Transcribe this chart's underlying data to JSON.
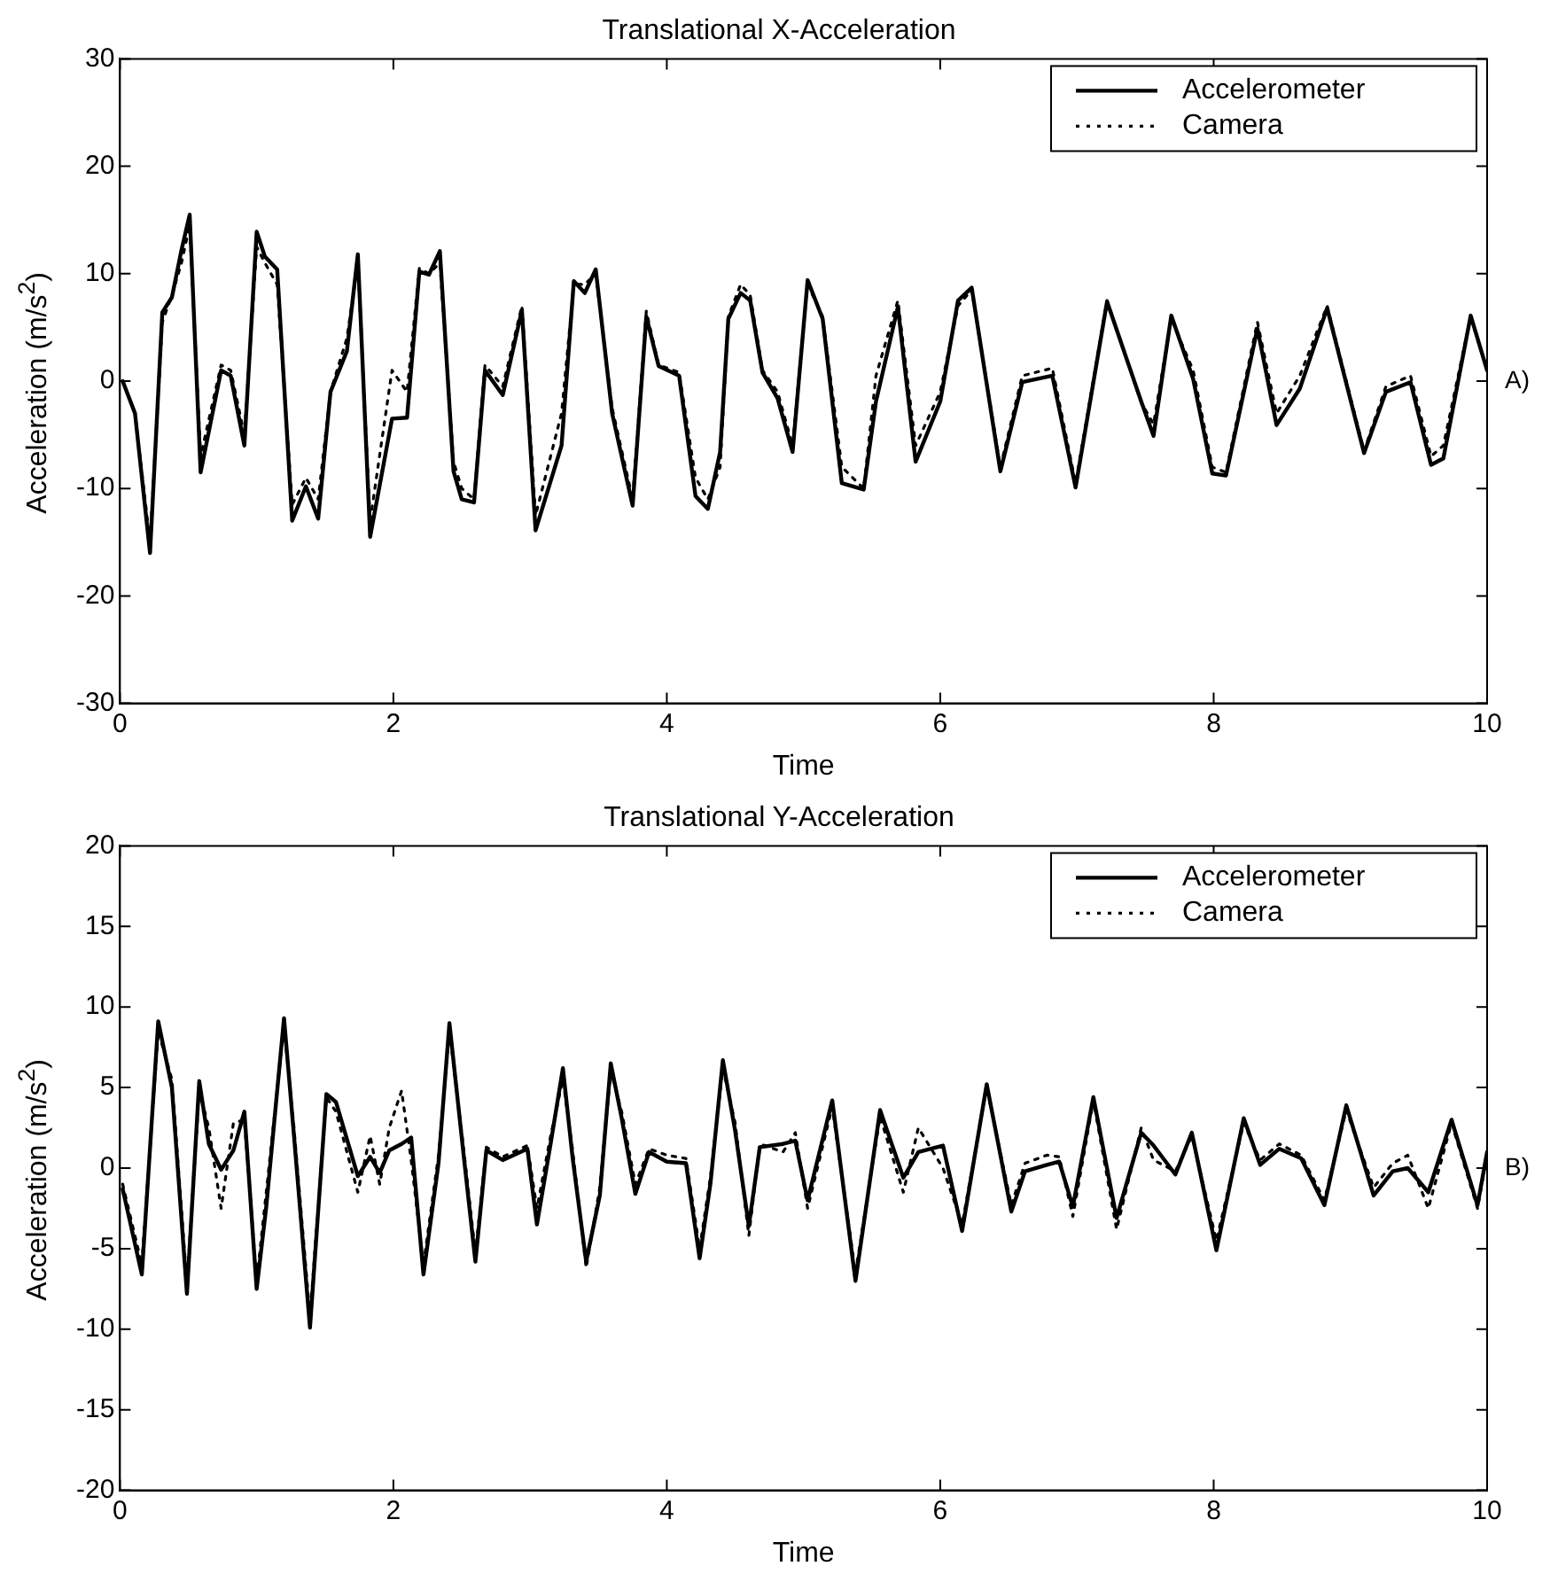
{
  "chart_data": [
    {
      "type": "line",
      "title": "Translational X-Acceleration",
      "xlabel": "Time",
      "ylabel": "Acceleration (m/s$^{2}$)",
      "annotations": [
        "A)"
      ],
      "xlim": [
        0,
        10
      ],
      "xticks": [
        0,
        2,
        4,
        6,
        8,
        10
      ],
      "ylim": [
        -30,
        30
      ],
      "yticks": [
        -30,
        -20,
        -10,
        0,
        10,
        20,
        30
      ],
      "grid": false,
      "legend": "top right",
      "marker": "none",
      "series": [
        {
          "name": "Accelerometer",
          "color": "#000000",
          "line_style": "solid",
          "x": [
            0.02,
            0.11,
            0.22,
            0.31,
            0.38,
            0.45,
            0.51,
            0.59,
            0.74,
            0.81,
            0.91,
            1.0,
            1.06,
            1.15,
            1.26,
            1.36,
            1.45,
            1.54,
            1.66,
            1.74,
            1.83,
            1.99,
            2.1,
            2.19,
            2.26,
            2.34,
            2.44,
            2.5,
            2.59,
            2.67,
            2.8,
            2.94,
            3.04,
            3.23,
            3.32,
            3.4,
            3.48,
            3.6,
            3.75,
            3.85,
            3.94,
            4.09,
            4.21,
            4.3,
            4.39,
            4.45,
            4.54,
            4.61,
            4.7,
            4.81,
            4.92,
            5.03,
            5.14,
            5.28,
            5.44,
            5.53,
            5.69,
            5.82,
            6.0,
            6.13,
            6.23,
            6.44,
            6.6,
            6.82,
            6.99,
            7.22,
            7.47,
            7.56,
            7.69,
            7.85,
            7.99,
            8.09,
            8.32,
            8.46,
            8.63,
            8.83,
            9.1,
            9.26,
            9.44,
            9.59,
            9.68,
            9.88,
            10
          ],
          "values": [
            0,
            -3,
            -16,
            6.4,
            7.8,
            12.2,
            15.5,
            -8.5,
            1,
            0.5,
            -6,
            13.9,
            11.6,
            10.4,
            -13,
            -9.8,
            -12.8,
            -1,
            2.8,
            11.8,
            -14.5,
            -3.5,
            -3.4,
            10.2,
            9.9,
            12.1,
            -8.4,
            -11,
            -11.3,
            1,
            -1.3,
            6.6,
            -13.9,
            -6,
            9.3,
            8.2,
            10.4,
            -3,
            -11.6,
            6,
            1.4,
            0.5,
            -10.7,
            -11.9,
            -6.6,
            5.8,
            8.2,
            7.5,
            0.8,
            -1.6,
            -6.6,
            9.4,
            5.8,
            -9.5,
            -10.1,
            -1.9,
            6.9,
            -7.5,
            -1.9,
            7.5,
            8.7,
            -8.4,
            -0.1,
            0.5,
            -9.9,
            7.4,
            -1.9,
            -5.1,
            6.1,
            0.2,
            -8.6,
            -8.8,
            4.9,
            -4.1,
            -0.7,
            6.8,
            -6.7,
            -1,
            -0.1,
            -7.8,
            -7.2,
            6.1,
            1
          ]
        },
        {
          "name": "Camera",
          "color": "#000000",
          "line_style": "dotted",
          "x": [
            0.02,
            0.11,
            0.22,
            0.31,
            0.38,
            0.45,
            0.51,
            0.59,
            0.74,
            0.81,
            0.91,
            1.0,
            1.06,
            1.15,
            1.26,
            1.36,
            1.45,
            1.54,
            1.66,
            1.74,
            1.83,
            1.99,
            2.1,
            2.19,
            2.26,
            2.34,
            2.44,
            2.5,
            2.59,
            2.67,
            2.8,
            2.94,
            3.04,
            3.23,
            3.32,
            3.4,
            3.48,
            3.6,
            3.75,
            3.85,
            3.94,
            4.09,
            4.21,
            4.3,
            4.39,
            4.45,
            4.54,
            4.61,
            4.7,
            4.81,
            4.92,
            5.03,
            5.14,
            5.28,
            5.44,
            5.53,
            5.69,
            5.82,
            6.0,
            6.13,
            6.23,
            6.44,
            6.6,
            6.82,
            6.99,
            7.22,
            7.47,
            7.56,
            7.69,
            7.85,
            7.99,
            8.09,
            8.32,
            8.46,
            8.63,
            8.83,
            9.1,
            9.26,
            9.44,
            9.59,
            9.68,
            9.88,
            10
          ],
          "values": [
            0,
            -3,
            -15,
            5.5,
            8,
            11,
            14.5,
            -7,
            1.5,
            1,
            -5,
            12.5,
            11,
            9,
            -11.5,
            -9,
            -11,
            -1,
            4,
            11,
            -13,
            1,
            -1,
            10.5,
            10,
            11,
            -7.5,
            -10,
            -11,
            1.5,
            -0.5,
            7,
            -12.5,
            -3,
            9,
            9,
            10,
            -2.5,
            -11,
            6.5,
            1.5,
            0.8,
            -9,
            -11,
            -8,
            6,
            9,
            8,
            1,
            -1,
            -6,
            9,
            6,
            -8,
            -10,
            0.5,
            7.5,
            -6,
            -1,
            7,
            8.5,
            -8,
            0.5,
            1.2,
            -9.5,
            7.5,
            -2,
            -4,
            5.8,
            1,
            -8,
            -8.5,
            5.5,
            -3,
            0.5,
            7,
            -6.5,
            -0.5,
            0.5,
            -7,
            -6,
            6,
            1
          ]
        }
      ]
    },
    {
      "type": "line",
      "title": "Translational Y-Acceleration",
      "xlabel": "Time",
      "ylabel": "Acceleration (m/s$^{2}$)",
      "annotations": [
        "B)"
      ],
      "xlim": [
        0,
        10
      ],
      "xticks": [
        0,
        2,
        4,
        6,
        8,
        10
      ],
      "ylim": [
        -20,
        20
      ],
      "yticks": [
        -20,
        -15,
        -10,
        -5,
        0,
        5,
        10,
        15,
        20
      ],
      "grid": false,
      "legend": "top right",
      "marker": "none",
      "series": [
        {
          "name": "Accelerometer",
          "color": "#000000",
          "line_style": "solid",
          "x": [
            0.02,
            0.16,
            0.28,
            0.38,
            0.49,
            0.58,
            0.65,
            0.74,
            0.83,
            0.91,
            1.0,
            1.07,
            1.2,
            1.27,
            1.39,
            1.51,
            1.58,
            1.74,
            1.83,
            1.9,
            1.97,
            2.06,
            2.13,
            2.22,
            2.33,
            2.41,
            2.51,
            2.6,
            2.68,
            2.8,
            2.98,
            3.05,
            3.15,
            3.24,
            3.31,
            3.41,
            3.51,
            3.59,
            3.67,
            3.77,
            3.87,
            4.0,
            4.14,
            4.24,
            4.32,
            4.41,
            4.5,
            4.6,
            4.68,
            4.85,
            4.94,
            5.03,
            5.21,
            5.38,
            5.56,
            5.73,
            5.84,
            6.02,
            6.16,
            6.34,
            6.52,
            6.62,
            6.78,
            6.87,
            6.97,
            7.12,
            7.29,
            7.47,
            7.56,
            7.72,
            7.84,
            8.02,
            8.22,
            8.34,
            8.48,
            8.64,
            8.81,
            8.97,
            9.17,
            9.31,
            9.42,
            9.57,
            9.74,
            9.93,
            10
          ],
          "values": [
            -1.3,
            -6.6,
            9.1,
            5,
            -7.8,
            5.4,
            1.5,
            -0.1,
            1.1,
            3.5,
            -7.5,
            -2.4,
            9.3,
            2.3,
            -9.9,
            4.6,
            4.1,
            -0.5,
            0.7,
            -0.3,
            1.1,
            1.5,
            1.9,
            -6.6,
            0.3,
            9,
            1.1,
            -5.8,
            1.1,
            0.5,
            1.2,
            -3.5,
            1.5,
            6.2,
            0.7,
            -5.8,
            -1.7,
            6.5,
            3.1,
            -1.6,
            1,
            0.4,
            0.3,
            -5.6,
            -0.9,
            6.7,
            2.3,
            -3.6,
            1.3,
            1.5,
            1.7,
            -2,
            4.2,
            -7,
            3.6,
            -0.6,
            1,
            1.4,
            -3.9,
            5.2,
            -2.7,
            -0.2,
            0.2,
            0.4,
            -2.4,
            4.4,
            -3.1,
            2.2,
            1.4,
            -0.4,
            2.2,
            -5.1,
            3.1,
            0.2,
            1.2,
            0.6,
            -2.3,
            3.9,
            -1.7,
            -0.2,
            0,
            -1.5,
            3,
            -2.3,
            1
          ]
        },
        {
          "name": "Camera",
          "color": "#000000",
          "line_style": "dotted",
          "x": [
            0.02,
            0.16,
            0.28,
            0.38,
            0.49,
            0.58,
            0.65,
            0.74,
            0.83,
            0.91,
            1.0,
            1.07,
            1.2,
            1.27,
            1.39,
            1.51,
            1.58,
            1.74,
            1.83,
            1.9,
            1.97,
            2.06,
            2.13,
            2.22,
            2.33,
            2.41,
            2.51,
            2.6,
            2.68,
            2.8,
            2.98,
            3.05,
            3.15,
            3.24,
            3.31,
            3.41,
            3.51,
            3.59,
            3.67,
            3.77,
            3.87,
            4.0,
            4.14,
            4.24,
            4.32,
            4.41,
            4.5,
            4.6,
            4.68,
            4.85,
            4.94,
            5.03,
            5.21,
            5.38,
            5.56,
            5.73,
            5.84,
            6.02,
            6.16,
            6.34,
            6.52,
            6.62,
            6.78,
            6.87,
            6.97,
            7.12,
            7.29,
            7.47,
            7.56,
            7.72,
            7.84,
            8.02,
            8.22,
            8.34,
            8.48,
            8.64,
            8.81,
            8.97,
            9.17,
            9.31,
            9.42,
            9.57,
            9.74,
            9.93,
            10
          ],
          "values": [
            -1,
            -6,
            8.5,
            5.5,
            -7.2,
            4.8,
            2.5,
            -2.5,
            2.8,
            3,
            -7,
            -1.5,
            8.8,
            2.8,
            -9.2,
            4.4,
            3.5,
            -1.5,
            2,
            -1,
            2.5,
            4.8,
            0.5,
            -6,
            0.8,
            8.5,
            1.5,
            -5.3,
            1.3,
            0.7,
            1.4,
            -2.5,
            2,
            5.5,
            1.2,
            -6.2,
            -1.2,
            6,
            3.5,
            -1,
            1.2,
            0.8,
            0.6,
            -5,
            -0.5,
            6.2,
            2.8,
            -4.2,
            1.5,
            1,
            2.2,
            -2.5,
            3.8,
            -6.5,
            3.2,
            -1.5,
            2.5,
            0,
            -3.5,
            5,
            -2.3,
            0.3,
            0.8,
            0.7,
            -3,
            4.2,
            -3.8,
            2.5,
            0.5,
            -0.2,
            2,
            -4.5,
            2.8,
            0.5,
            1.5,
            0.8,
            -2,
            3.6,
            -1.2,
            0.3,
            0.8,
            -2.5,
            2.8,
            -2.5,
            0.8
          ]
        }
      ]
    }
  ]
}
